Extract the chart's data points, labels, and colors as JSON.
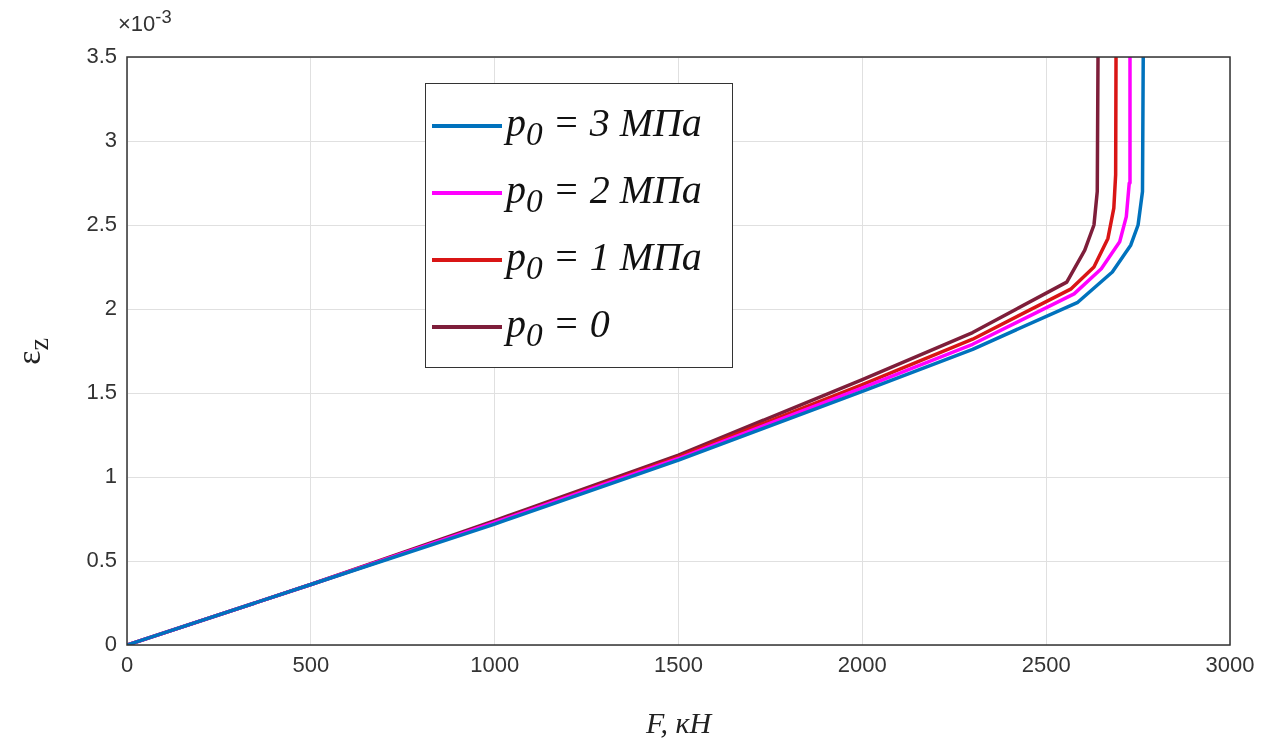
{
  "chart_data": {
    "type": "line",
    "xlabel": "F, кН",
    "ylabel": "ε$_{z}$",
    "annotations": [
      "×10$^{-3}$"
    ],
    "xlim": [
      0,
      3000
    ],
    "xticks": [
      0,
      500,
      1000,
      1500,
      2000,
      2500,
      3000
    ],
    "ylim": [
      0,
      3.5
    ],
    "yticks": [
      0,
      0.5,
      1,
      1.5,
      2,
      2.5,
      3,
      3.5
    ],
    "grid": true,
    "legend": "top left",
    "marker": "none",
    "line_style": "solid",
    "series": [
      {
        "name": "p$_{0}$ = 3 МПа",
        "color": "#0072bd",
        "x": [
          0,
          500,
          1000,
          1500,
          2000,
          2300,
          2586,
          2680,
          2730,
          2750,
          2762,
          2764
        ],
        "values": [
          0,
          0.36,
          0.72,
          1.1,
          1.51,
          1.76,
          2.04,
          2.22,
          2.38,
          2.5,
          2.7,
          3.5
        ]
      },
      {
        "name": "p$_{0}$ = 2 МПа",
        "color": "#ff00ff",
        "x": [
          0,
          500,
          1000,
          1500,
          2000,
          2300,
          2576,
          2650,
          2700,
          2718,
          2726,
          2728
        ],
        "values": [
          0,
          0.36,
          0.73,
          1.11,
          1.53,
          1.79,
          2.09,
          2.24,
          2.4,
          2.55,
          2.75,
          3.5
        ]
      },
      {
        "name": "p$_{0}$ = 1 МПа",
        "color": "#d91515",
        "x": [
          0,
          500,
          1000,
          1500,
          2000,
          2300,
          2568,
          2630,
          2668,
          2684,
          2689,
          2690
        ],
        "values": [
          0,
          0.36,
          0.73,
          1.12,
          1.55,
          1.82,
          2.12,
          2.25,
          2.42,
          2.6,
          2.8,
          3.5
        ]
      },
      {
        "name": "p$_{0}$ = 0",
        "color": "#7e1e3a",
        "x": [
          0,
          500,
          1000,
          1500,
          2000,
          2300,
          2556,
          2605,
          2630,
          2639,
          2641
        ],
        "values": [
          0,
          0.36,
          0.74,
          1.13,
          1.58,
          1.86,
          2.16,
          2.35,
          2.5,
          2.7,
          3.5
        ]
      }
    ]
  }
}
